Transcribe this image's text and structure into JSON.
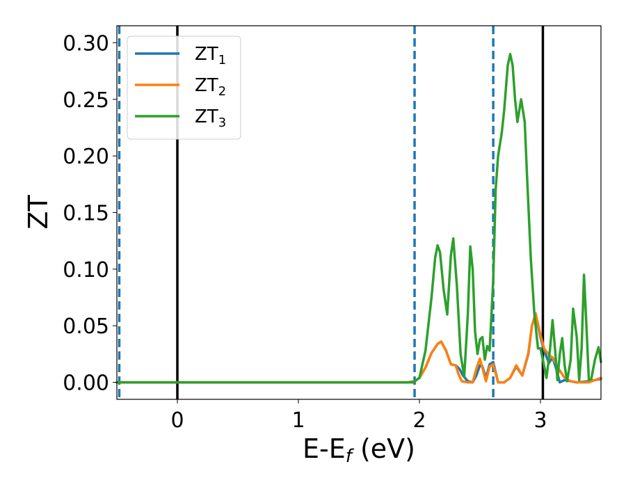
{
  "chart_data": {
    "type": "line",
    "xlabel": {
      "main": "E-E",
      "sub": "f",
      "unit": " (eV)"
    },
    "ylabel": "ZT",
    "xlim": [
      -0.5,
      3.5
    ],
    "ylim": [
      -0.015,
      0.315
    ],
    "xticks": [
      0,
      1,
      2,
      3
    ],
    "xtick_labels": [
      "0",
      "1",
      "2",
      "3"
    ],
    "yticks": [
      0.0,
      0.05,
      0.1,
      0.15,
      0.2,
      0.25,
      0.3
    ],
    "ytick_labels": [
      "0.00",
      "0.05",
      "0.10",
      "0.15",
      "0.20",
      "0.25",
      "0.30"
    ],
    "grid": false,
    "legend_position": "top-left",
    "vlines_solid": [
      0,
      3.02
    ],
    "vlines_dashed": [
      -0.48,
      1.96,
      2.61
    ],
    "series": [
      {
        "name": "ZT",
        "sub": "1",
        "color": "#1f77b4",
        "x": [
          -0.5,
          1.9,
          1.96,
          2.0,
          2.05,
          2.1,
          2.15,
          2.18,
          2.22,
          2.26,
          2.3,
          2.33,
          2.36,
          2.4,
          2.44,
          2.47,
          2.5,
          2.52,
          2.55,
          2.58,
          2.61,
          2.65,
          2.7,
          2.75,
          2.8,
          2.85,
          2.9,
          2.93,
          2.96,
          3.0,
          3.03,
          3.07,
          3.1,
          3.13,
          3.16,
          3.2,
          3.3,
          3.4,
          3.5
        ],
        "y": [
          0.0,
          0.0,
          0.001,
          0.004,
          0.013,
          0.026,
          0.034,
          0.036,
          0.028,
          0.016,
          0.015,
          0.012,
          0.006,
          0.001,
          0.0,
          0.006,
          0.015,
          0.014,
          0.004,
          0.016,
          0.018,
          0.0,
          0.0,
          0.004,
          0.014,
          0.006,
          0.025,
          0.05,
          0.06,
          0.04,
          0.028,
          0.017,
          0.022,
          0.012,
          0.0,
          0.002,
          0.0,
          0.001,
          0.003
        ]
      },
      {
        "name": "ZT",
        "sub": "2",
        "color": "#ff7f0e",
        "x": [
          -0.5,
          1.9,
          1.96,
          2.0,
          2.05,
          2.1,
          2.15,
          2.18,
          2.22,
          2.26,
          2.3,
          2.32,
          2.35,
          2.4,
          2.44,
          2.47,
          2.5,
          2.52,
          2.55,
          2.58,
          2.61,
          2.65,
          2.7,
          2.75,
          2.8,
          2.85,
          2.9,
          2.93,
          2.96,
          3.0,
          3.03,
          3.07,
          3.1,
          3.15,
          3.2,
          3.25,
          3.3,
          3.4,
          3.5
        ],
        "y": [
          0.0,
          0.0,
          0.001,
          0.004,
          0.013,
          0.026,
          0.034,
          0.036,
          0.028,
          0.016,
          0.015,
          0.008,
          0.001,
          0.0,
          0.0,
          0.012,
          0.021,
          0.013,
          0.001,
          0.014,
          0.016,
          0.0,
          0.0,
          0.004,
          0.015,
          0.006,
          0.026,
          0.05,
          0.061,
          0.042,
          0.03,
          0.024,
          0.022,
          0.012,
          0.004,
          0.001,
          0.0,
          0.0,
          0.004
        ]
      },
      {
        "name": "ZT",
        "sub": "3",
        "color": "#2ca02c",
        "x": [
          -0.5,
          1.9,
          1.95,
          2.0,
          2.05,
          2.1,
          2.13,
          2.15,
          2.17,
          2.2,
          2.23,
          2.26,
          2.28,
          2.31,
          2.34,
          2.37,
          2.4,
          2.42,
          2.44,
          2.46,
          2.48,
          2.5,
          2.52,
          2.54,
          2.56,
          2.58,
          2.61,
          2.63,
          2.65,
          2.68,
          2.7,
          2.73,
          2.75,
          2.77,
          2.79,
          2.81,
          2.84,
          2.87,
          2.89,
          2.92,
          2.95,
          2.98,
          3.0,
          3.02,
          3.05,
          3.08,
          3.1,
          3.12,
          3.14,
          3.16,
          3.18,
          3.2,
          3.22,
          3.25,
          3.27,
          3.3,
          3.32,
          3.34,
          3.36,
          3.38,
          3.4,
          3.42,
          3.45,
          3.48,
          3.5
        ],
        "y": [
          0.0,
          0.0,
          0.0,
          0.004,
          0.028,
          0.075,
          0.11,
          0.121,
          0.115,
          0.082,
          0.06,
          0.112,
          0.127,
          0.085,
          0.025,
          0.005,
          0.06,
          0.12,
          0.1,
          0.045,
          0.025,
          0.038,
          0.04,
          0.02,
          0.032,
          0.028,
          0.09,
          0.17,
          0.2,
          0.22,
          0.24,
          0.28,
          0.29,
          0.28,
          0.25,
          0.23,
          0.25,
          0.23,
          0.18,
          0.11,
          0.06,
          0.03,
          0.03,
          0.02,
          0.004,
          0.03,
          0.055,
          0.03,
          0.002,
          0.025,
          0.039,
          0.015,
          0.001,
          0.02,
          0.065,
          0.04,
          0.002,
          0.03,
          0.095,
          0.05,
          0.002,
          0.003,
          0.02,
          0.031,
          0.018
        ]
      }
    ]
  }
}
